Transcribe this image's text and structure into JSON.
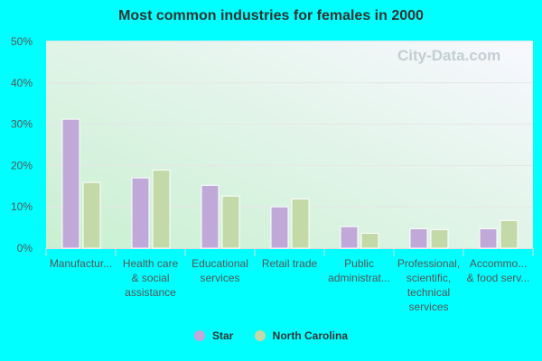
{
  "chart_data": {
    "type": "bar",
    "title": "Most common industries for females in 2000",
    "categories": [
      [
        "Manufactur..."
      ],
      [
        "Health care",
        "& social",
        "assistance"
      ],
      [
        "Educational",
        "services"
      ],
      [
        "Retail trade"
      ],
      [
        "Public",
        "administrat..."
      ],
      [
        "Professional,",
        "scientific,",
        "technical",
        "services"
      ],
      [
        "Accommo...",
        "& food serv..."
      ]
    ],
    "series": [
      {
        "name": "Star",
        "color": "#c0a8d8",
        "values": [
          31.2,
          17.0,
          15.2,
          10.0,
          5.2,
          4.7,
          4.7
        ]
      },
      {
        "name": "North Carolina",
        "color": "#c4d9a8",
        "values": [
          15.9,
          18.9,
          12.6,
          11.9,
          3.6,
          4.5,
          6.7
        ]
      }
    ],
    "ylim": [
      0,
      50
    ],
    "yticks": [
      "0%",
      "10%",
      "20%",
      "30%",
      "40%",
      "50%"
    ],
    "grid": true,
    "legend_placement": "bottom"
  },
  "watermark": "City-Data.com"
}
